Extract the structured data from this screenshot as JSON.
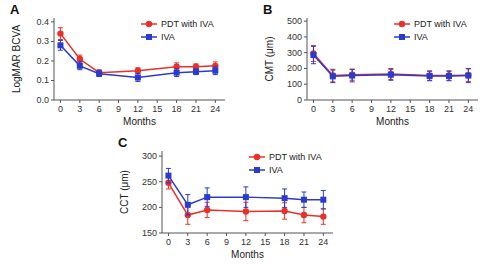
{
  "chart_data": [
    {
      "type": "line",
      "title": "A",
      "xlabel": "Months",
      "ylabel": "LogMAR BCVA",
      "x": [
        0,
        3,
        6,
        12,
        18,
        21,
        24
      ],
      "xlim": [
        -1,
        25.5
      ],
      "xticks": [
        0,
        3,
        6,
        9,
        12,
        15,
        18,
        21,
        24
      ],
      "ylim": [
        0.0,
        0.42
      ],
      "yticks": [
        {
          "value": 0.0,
          "label": "0.0"
        },
        0.1,
        0.2,
        0.3,
        0.4
      ],
      "grid": false,
      "legend": "upper right",
      "series": [
        {
          "name": "PDT with IVA",
          "color": "#e8312a",
          "marker": "circle",
          "values": [
            0.34,
            0.21,
            0.14,
            0.15,
            0.17,
            0.17,
            0.175
          ],
          "errors": [
            0.03,
            0.02,
            0.015,
            0.015,
            0.02,
            0.015,
            0.02
          ]
        },
        {
          "name": "IVA",
          "color": "#2b3bcc",
          "marker": "square",
          "values": [
            0.28,
            0.175,
            0.135,
            0.115,
            0.14,
            0.145,
            0.15
          ],
          "errors": [
            0.025,
            0.02,
            0.015,
            0.02,
            0.02,
            0.015,
            0.02
          ]
        }
      ]
    },
    {
      "type": "line",
      "title": "B",
      "xlabel": "Months",
      "ylabel": "CMT (μm)",
      "x": [
        0,
        3,
        6,
        12,
        18,
        21,
        24
      ],
      "xlim": [
        -1,
        25.5
      ],
      "xticks": [
        0,
        3,
        6,
        9,
        12,
        15,
        18,
        21,
        24
      ],
      "ylim": [
        0,
        520
      ],
      "yticks": [
        0,
        100,
        200,
        300,
        400,
        500
      ],
      "grid": false,
      "legend": "upper right",
      "series": [
        {
          "name": "PDT with IVA",
          "color": "#e8312a",
          "marker": "circle",
          "values": [
            295,
            155,
            160,
            165,
            155,
            155,
            157
          ],
          "errors": [
            50,
            40,
            35,
            35,
            30,
            30,
            40
          ]
        },
        {
          "name": "IVA",
          "color": "#2b3bcc",
          "marker": "square",
          "values": [
            285,
            150,
            155,
            160,
            152,
            152,
            155
          ],
          "errors": [
            55,
            40,
            40,
            35,
            30,
            30,
            45
          ]
        }
      ]
    },
    {
      "type": "line",
      "title": "C",
      "xlabel": "Months",
      "ylabel": "CCT (μm)",
      "x": [
        0,
        3,
        6,
        12,
        18,
        21,
        24
      ],
      "xlim": [
        -1,
        25.5
      ],
      "xticks": [
        0,
        3,
        6,
        9,
        12,
        15,
        18,
        21,
        24
      ],
      "ylim": [
        150,
        310
      ],
      "yticks": [
        150,
        200,
        250,
        300
      ],
      "grid": false,
      "legend": "upper right",
      "series": [
        {
          "name": "PDT with IVA",
          "color": "#e8312a",
          "marker": "circle",
          "values": [
            248,
            185,
            195,
            192,
            193,
            185,
            182
          ],
          "errors": [
            12,
            18,
            15,
            18,
            16,
            15,
            15
          ]
        },
        {
          "name": "IVA",
          "color": "#2b3bcc",
          "marker": "square",
          "values": [
            262,
            205,
            220,
            220,
            218,
            215,
            215
          ],
          "errors": [
            14,
            20,
            18,
            20,
            18,
            15,
            18
          ]
        }
      ]
    }
  ]
}
